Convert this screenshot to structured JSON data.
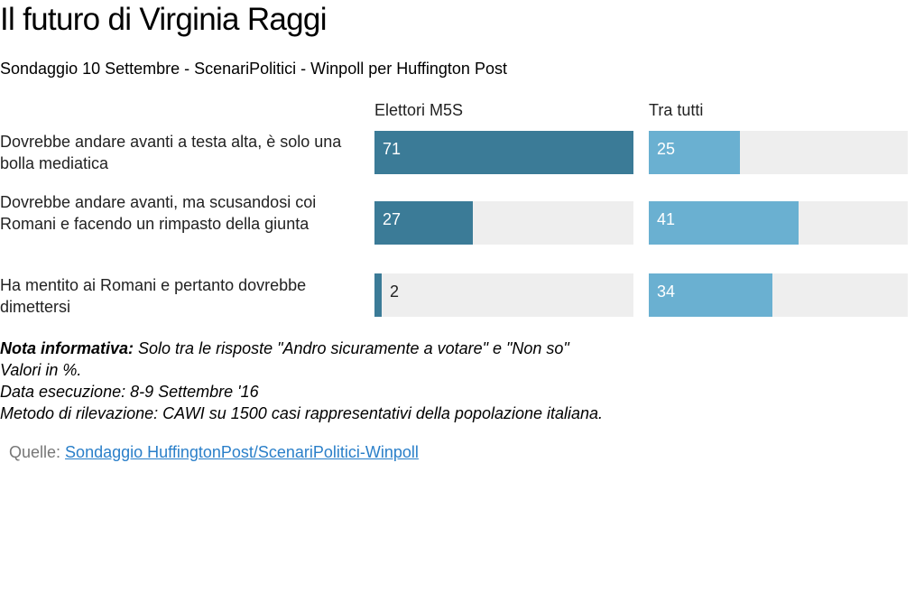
{
  "colors": {
    "m5s": "#3b7b97",
    "tutti": "#6ab0d1",
    "track": "#eeeeee",
    "link": "#2a7fc9"
  },
  "chart_data": {
    "type": "bar",
    "title": "Il futuro di Virginia Raggi",
    "subtitle": "Sondaggio 10 Settembre - ScenariPolitici - Winpoll per Huffington Post",
    "categories": [
      "Dovrebbe andare avanti a testa alta, è solo una bolla mediatica",
      "Dovrebbe andare avanti, ma scusandosi coi Romani e facendo un rimpasto della giunta",
      "Ha mentito ai Romani e pertanto dovrebbe dimettersi"
    ],
    "series": [
      {
        "name": "Elettori M5S",
        "values": [
          71,
          27,
          2
        ]
      },
      {
        "name": "Tra tutti",
        "values": [
          25,
          41,
          34
        ]
      }
    ],
    "xlim": [
      0,
      71
    ]
  },
  "notes": {
    "label": "Nota informativa:",
    "line1": " Solo tra le risposte \"Andro sicuramente a votare\" e \"Non so\"",
    "line2": "Valori in %.",
    "line3": "Data esecuzione: 8-9 Settembre '16",
    "line4": "Metodo di rilevazione: CAWI su 1500 casi rappresentativi della popolazione italiana."
  },
  "source": {
    "label": "Quelle: ",
    "link_text": "Sondaggio HuffingtonPost/ScenariPolitici-Winpoll"
  }
}
